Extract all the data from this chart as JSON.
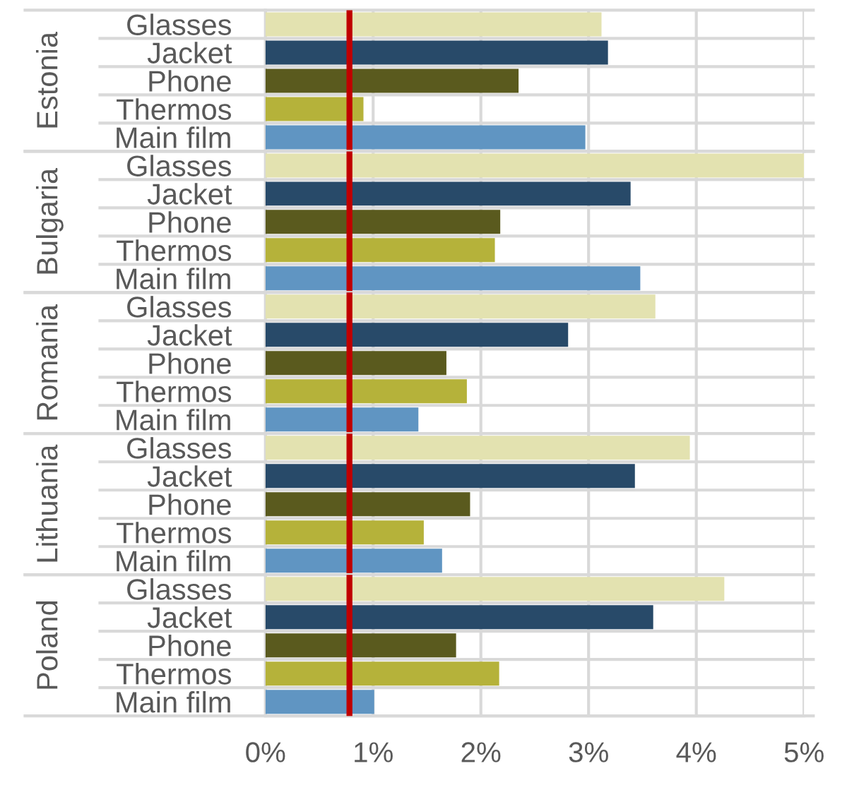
{
  "chart_data": [
    {
      "type": "bar",
      "orientation": "horizontal",
      "ylabel": "Estonia",
      "categories": [
        "Glasses",
        "Jacket",
        "Phone",
        "Thermos",
        "Main film"
      ],
      "values": [
        3.12,
        3.18,
        2.35,
        0.91,
        2.97
      ],
      "colors": [
        "#e3e2b0",
        "#284a69",
        "#5a5a1e",
        "#b5b23a",
        "#6095c2"
      ],
      "xlim": [
        0,
        5
      ],
      "xticks": [
        0,
        1,
        2,
        3,
        4,
        5
      ],
      "grid": true,
      "tick_labels": "y",
      "ref_lines": [
        {
          "axis": "x",
          "value": 0.78,
          "color": "#c00000"
        }
      ]
    },
    {
      "type": "bar",
      "orientation": "horizontal",
      "ylabel": "Bulgaria",
      "categories": [
        "Glasses",
        "Jacket",
        "Phone",
        "Thermos",
        "Main film"
      ],
      "values": [
        5.0,
        3.39,
        2.18,
        2.13,
        3.48
      ],
      "colors": [
        "#e3e2b0",
        "#284a69",
        "#5a5a1e",
        "#b5b23a",
        "#6095c2"
      ],
      "xlim": [
        0,
        5
      ],
      "xticks": [
        0,
        1,
        2,
        3,
        4,
        5
      ],
      "grid": true,
      "tick_labels": "y",
      "ref_lines": [
        {
          "axis": "x",
          "value": 0.78,
          "color": "#c00000"
        }
      ]
    },
    {
      "type": "bar",
      "orientation": "horizontal",
      "ylabel": "Romania",
      "categories": [
        "Glasses",
        "Jacket",
        "Phone",
        "Thermos",
        "Main film"
      ],
      "values": [
        3.62,
        2.81,
        1.68,
        1.87,
        1.42
      ],
      "colors": [
        "#e3e2b0",
        "#284a69",
        "#5a5a1e",
        "#b5b23a",
        "#6095c2"
      ],
      "xlim": [
        0,
        5
      ],
      "xticks": [
        0,
        1,
        2,
        3,
        4,
        5
      ],
      "grid": true,
      "tick_labels": "y",
      "ref_lines": [
        {
          "axis": "x",
          "value": 0.78,
          "color": "#c00000"
        }
      ]
    },
    {
      "type": "bar",
      "orientation": "horizontal",
      "ylabel": "Lithuania",
      "categories": [
        "Glasses",
        "Jacket",
        "Phone",
        "Thermos",
        "Main film"
      ],
      "values": [
        3.94,
        3.43,
        1.9,
        1.47,
        1.64
      ],
      "colors": [
        "#e3e2b0",
        "#284a69",
        "#5a5a1e",
        "#b5b23a",
        "#6095c2"
      ],
      "xlim": [
        0,
        5
      ],
      "xticks": [
        0,
        1,
        2,
        3,
        4,
        5
      ],
      "grid": true,
      "tick_labels": "y",
      "ref_lines": [
        {
          "axis": "x",
          "value": 0.78,
          "color": "#c00000"
        }
      ]
    },
    {
      "type": "bar",
      "orientation": "horizontal",
      "ylabel": "Poland",
      "categories": [
        "Glasses",
        "Jacket",
        "Phone",
        "Thermos",
        "Main film"
      ],
      "values": [
        4.26,
        3.6,
        1.77,
        2.17,
        1.01
      ],
      "colors": [
        "#e3e2b0",
        "#284a69",
        "#5a5a1e",
        "#b5b23a",
        "#6095c2"
      ],
      "xlim": [
        0,
        5
      ],
      "xticks": [
        {
          "value": 0,
          "label": "0%"
        },
        {
          "value": 1,
          "label": "1%"
        },
        {
          "value": 2,
          "label": "2%"
        },
        {
          "value": 3,
          "label": "3%"
        },
        {
          "value": 4,
          "label": "4%"
        },
        {
          "value": 5,
          "label": "5%"
        }
      ],
      "grid": true,
      "ref_lines": [
        {
          "axis": "x",
          "value": 0.78,
          "color": "#c00000"
        }
      ]
    }
  ]
}
